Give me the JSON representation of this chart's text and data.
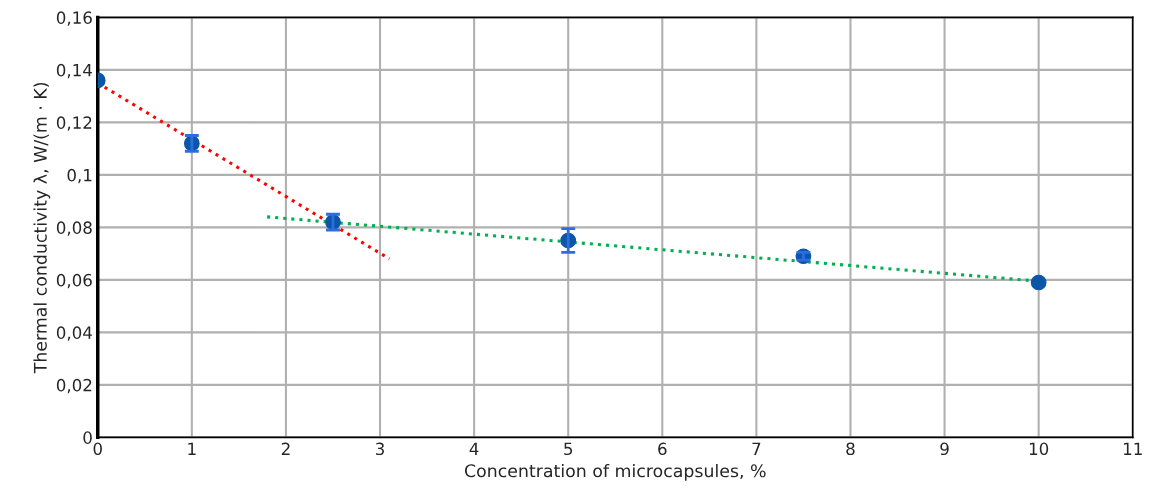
{
  "chart_data": {
    "type": "scatter",
    "xlabel": "Concentration of microcapsules, %",
    "ylabel": "Thermal conductivity λ, W/(m · K)",
    "xlim": [
      0,
      11
    ],
    "xticks": [
      0,
      1,
      2,
      3,
      4,
      5,
      6,
      7,
      8,
      9,
      10,
      11
    ],
    "ylim": [
      0,
      0.16
    ],
    "yticks": [
      0,
      {
        "value": 0.02,
        "label": "0,02"
      },
      {
        "value": 0.04,
        "label": "0,04"
      },
      {
        "value": 0.06,
        "label": "0,06"
      },
      {
        "value": 0.08,
        "label": "0,08"
      },
      {
        "value": 0.1,
        "label": "0,1"
      },
      {
        "value": 0.12,
        "label": "0,12"
      },
      {
        "value": 0.14,
        "label": "0,14"
      },
      {
        "value": 0.16,
        "label": "0,16"
      }
    ],
    "grid": true,
    "series": [
      {
        "type": "line",
        "color": "#ff0000",
        "x": [
          0,
          3.1
        ],
        "values": [
          0.135,
          0.068
        ],
        "marker": "none",
        "line_style": "dotted"
      },
      {
        "type": "line",
        "color": "#00b050",
        "x": [
          1.8,
          10
        ],
        "values": [
          0.084,
          0.0595
        ],
        "marker": "none",
        "line_style": "dotted"
      },
      {
        "color": "#0b56a8",
        "x": [
          0,
          1,
          2.5,
          5,
          7.5,
          10
        ],
        "values": [
          0.136,
          0.112,
          0.082,
          0.075,
          0.069,
          0.059
        ],
        "errors": [
          null,
          0.003,
          0.003,
          0.0045,
          0.0015,
          null
        ],
        "marker": "circle"
      }
    ]
  }
}
